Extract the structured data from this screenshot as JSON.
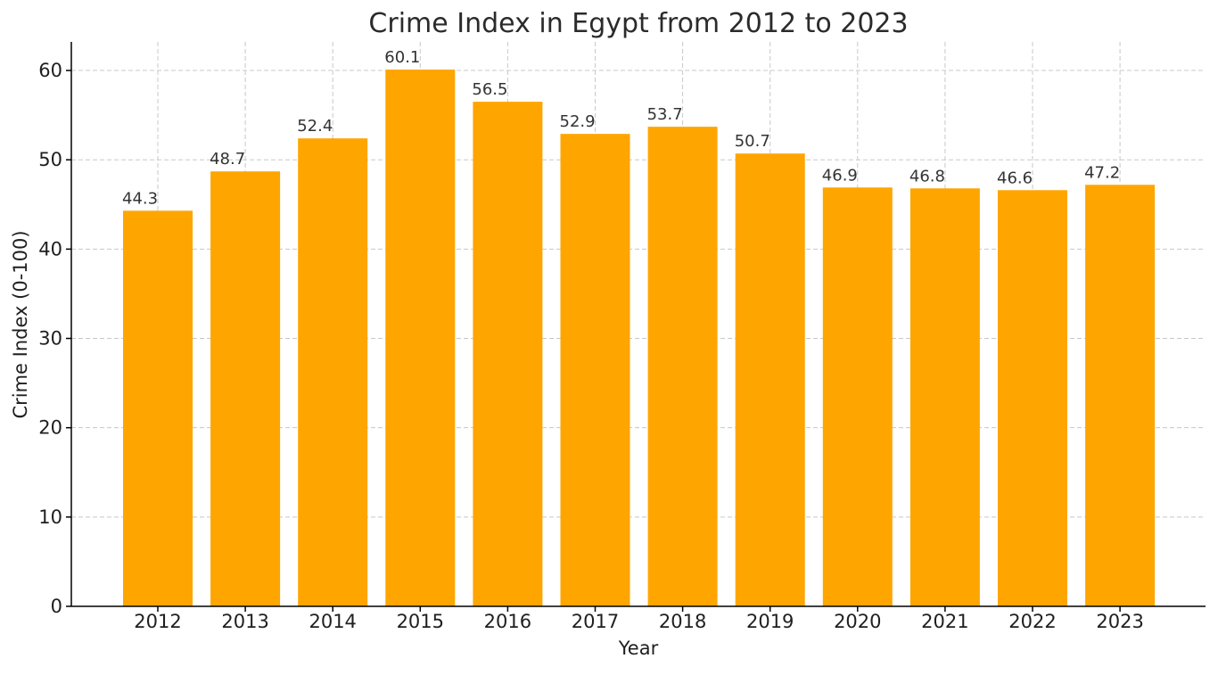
{
  "chart_data": {
    "type": "bar",
    "title": "Crime Index in Egypt from 2012 to 2023",
    "xlabel": "Year",
    "ylabel": "Crime Index (0-100)",
    "categories": [
      "2012",
      "2013",
      "2014",
      "2015",
      "2016",
      "2017",
      "2018",
      "2019",
      "2020",
      "2021",
      "2022",
      "2023"
    ],
    "values": [
      44.3,
      48.7,
      52.4,
      60.1,
      56.5,
      52.9,
      53.7,
      50.7,
      46.9,
      46.8,
      46.6,
      47.2
    ],
    "data_labels": [
      "44.3",
      "48.7",
      "52.4",
      "60.1",
      "56.5",
      "52.9",
      "53.7",
      "50.7",
      "46.9",
      "46.8",
      "46.6",
      "47.2"
    ],
    "ylim": [
      0,
      63.2
    ],
    "yticks": [
      0,
      10,
      20,
      30,
      40,
      50,
      60
    ],
    "ytick_labels": [
      "0",
      "10",
      "20",
      "30",
      "40",
      "50",
      "60"
    ],
    "grid": true,
    "legend": "none",
    "bar_color": "#ffa500"
  }
}
